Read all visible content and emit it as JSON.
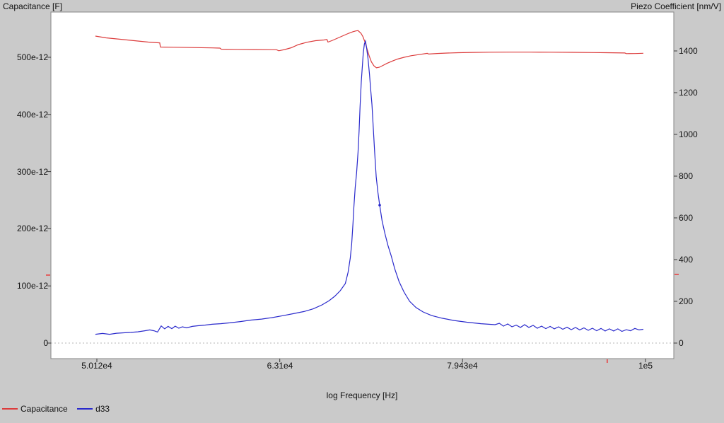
{
  "chart_data": {
    "type": "line",
    "title": "",
    "x_axis": {
      "label": "log Frequency [Hz]",
      "scale": "log",
      "range_log10": [
        4.6749,
        5.0155
      ],
      "ticks": [
        {
          "value": 50120,
          "label": "5.012e4"
        },
        {
          "value": 63100,
          "label": "6.31e4"
        },
        {
          "value": 79430,
          "label": "7.943e4"
        },
        {
          "value": 100000,
          "label": "1e5"
        }
      ]
    },
    "y_left": {
      "label": "Capacitance [F]",
      "unit": "1e-12 F",
      "range": [
        -27.2,
        579.2
      ],
      "ticks": [
        {
          "value": 0,
          "label": "0"
        },
        {
          "value": 100,
          "label": "100e-12"
        },
        {
          "value": 200,
          "label": "200e-12"
        },
        {
          "value": 300,
          "label": "300e-12"
        },
        {
          "value": 400,
          "label": "400e-12"
        },
        {
          "value": 500,
          "label": "500e-12"
        }
      ]
    },
    "y_right": {
      "label": "Piezo Coefficient [nm/V]",
      "unit": "nm/V",
      "range": [
        -74.6,
        1586.4
      ],
      "ticks": [
        {
          "value": 0,
          "label": "0"
        },
        {
          "value": 200,
          "label": "200"
        },
        {
          "value": 400,
          "label": "400"
        },
        {
          "value": 600,
          "label": "600"
        },
        {
          "value": 800,
          "label": "800"
        },
        {
          "value": 1000,
          "label": "1000"
        },
        {
          "value": 1200,
          "label": "1200"
        },
        {
          "value": 1400,
          "label": "1400"
        }
      ]
    },
    "grid": "off",
    "zero_line": true,
    "legend_position": "bottom-left",
    "background": "#cacaca",
    "plot_background": "#ffffff",
    "cursors": {
      "color": "#e84040",
      "left_axis_value": 119,
      "right_axis_value": 329,
      "x_axis_value": 95300
    },
    "series": [
      {
        "name": "Capacitance",
        "axis": "left",
        "color": "#dc3c3c",
        "points": [
          [
            50030,
            537.1
          ],
          [
            50700,
            534.0
          ],
          [
            51620,
            531.5
          ],
          [
            52540,
            529.1
          ],
          [
            53480,
            526.6
          ],
          [
            54250,
            525.3
          ],
          [
            54300,
            517.9
          ],
          [
            55180,
            517.6
          ],
          [
            56420,
            517.1
          ],
          [
            57950,
            516.5
          ],
          [
            58520,
            516.1
          ],
          [
            58620,
            514.2
          ],
          [
            59770,
            513.9
          ],
          [
            61140,
            513.6
          ],
          [
            62850,
            513.2
          ],
          [
            63020,
            511.4
          ],
          [
            63510,
            513.6
          ],
          [
            64020,
            516.7
          ],
          [
            64600,
            522.3
          ],
          [
            65310,
            526.3
          ],
          [
            66010,
            529.1
          ],
          [
            66720,
            530.3
          ],
          [
            66960,
            531.2
          ],
          [
            67050,
            526.6
          ],
          [
            67440,
            529.7
          ],
          [
            67920,
            534.0
          ],
          [
            68410,
            538.3
          ],
          [
            68830,
            542.1
          ],
          [
            69200,
            544.8
          ],
          [
            69450,
            546.1
          ],
          [
            69640,
            546.6
          ],
          [
            69890,
            542.1
          ],
          [
            70070,
            535.9
          ],
          [
            70260,
            526.0
          ],
          [
            70450,
            513.6
          ],
          [
            70640,
            501.2
          ],
          [
            70820,
            491.9
          ],
          [
            71040,
            485.1
          ],
          [
            71270,
            481.6
          ],
          [
            71520,
            482.6
          ],
          [
            71840,
            485.7
          ],
          [
            72220,
            489.4
          ],
          [
            72670,
            493.1
          ],
          [
            73190,
            496.9
          ],
          [
            73790,
            500.0
          ],
          [
            74440,
            502.7
          ],
          [
            75180,
            504.7
          ],
          [
            75980,
            506.9
          ],
          [
            76120,
            505.7
          ],
          [
            76930,
            506.7
          ],
          [
            77900,
            507.4
          ],
          [
            79010,
            508.0
          ],
          [
            80430,
            508.5
          ],
          [
            82160,
            508.9
          ],
          [
            84230,
            509.0
          ],
          [
            86510,
            509.0
          ],
          [
            88840,
            508.9
          ],
          [
            91240,
            508.6
          ],
          [
            93700,
            508.3
          ],
          [
            95210,
            508.0
          ],
          [
            97440,
            507.6
          ],
          [
            97620,
            506.4
          ],
          [
            98670,
            506.6
          ],
          [
            99730,
            507.0
          ]
        ]
      },
      {
        "name": "d33",
        "axis": "right",
        "color": "#2a2acc",
        "dot_point": [
          71560,
          661
        ],
        "points": [
          [
            50030,
            42
          ],
          [
            50480,
            46
          ],
          [
            50930,
            42
          ],
          [
            51380,
            47
          ],
          [
            51840,
            49
          ],
          [
            52310,
            51
          ],
          [
            52770,
            54
          ],
          [
            53240,
            59
          ],
          [
            53580,
            63
          ],
          [
            53860,
            59
          ],
          [
            54100,
            53
          ],
          [
            54350,
            82
          ],
          [
            54590,
            68
          ],
          [
            54830,
            80
          ],
          [
            55080,
            69
          ],
          [
            55320,
            81
          ],
          [
            55570,
            71
          ],
          [
            55820,
            78
          ],
          [
            56120,
            73
          ],
          [
            56520,
            80
          ],
          [
            56920,
            83
          ],
          [
            57430,
            86
          ],
          [
            57950,
            90
          ],
          [
            58570,
            93
          ],
          [
            59250,
            97
          ],
          [
            60050,
            103
          ],
          [
            60850,
            110
          ],
          [
            61670,
            115
          ],
          [
            62500,
            122
          ],
          [
            63340,
            131
          ],
          [
            64200,
            141
          ],
          [
            65060,
            151
          ],
          [
            65820,
            164
          ],
          [
            66550,
            183
          ],
          [
            67140,
            203
          ],
          [
            67620,
            224
          ],
          [
            68100,
            251
          ],
          [
            68530,
            285
          ],
          [
            68770,
            339
          ],
          [
            68960,
            407
          ],
          [
            69080,
            475
          ],
          [
            69200,
            576
          ],
          [
            69270,
            651
          ],
          [
            69390,
            746
          ],
          [
            69510,
            814
          ],
          [
            69640,
            915
          ],
          [
            69730,
            1017
          ],
          [
            69820,
            1136
          ],
          [
            69920,
            1254
          ],
          [
            70010,
            1322
          ],
          [
            70100,
            1390
          ],
          [
            70200,
            1434
          ],
          [
            70290,
            1447
          ],
          [
            70380,
            1420
          ],
          [
            70510,
            1366
          ],
          [
            70650,
            1288
          ],
          [
            70760,
            1210
          ],
          [
            70870,
            1142
          ],
          [
            70980,
            1034
          ],
          [
            71110,
            915
          ],
          [
            71250,
            797
          ],
          [
            71400,
            722
          ],
          [
            71560,
            661
          ],
          [
            71780,
            586
          ],
          [
            72030,
            525
          ],
          [
            72310,
            468
          ],
          [
            72610,
            417
          ],
          [
            72930,
            356
          ],
          [
            73330,
            295
          ],
          [
            73790,
            244
          ],
          [
            74310,
            200
          ],
          [
            74910,
            170
          ],
          [
            75580,
            149
          ],
          [
            76390,
            132
          ],
          [
            77420,
            119
          ],
          [
            78590,
            108
          ],
          [
            79860,
            100
          ],
          [
            81290,
            93
          ],
          [
            82750,
            88
          ],
          [
            83190,
            95
          ],
          [
            83630,
            81
          ],
          [
            84080,
            92
          ],
          [
            84530,
            78
          ],
          [
            84980,
            86
          ],
          [
            85440,
            75
          ],
          [
            85890,
            88
          ],
          [
            86350,
            75
          ],
          [
            86810,
            85
          ],
          [
            87270,
            71
          ],
          [
            87740,
            81
          ],
          [
            88210,
            69
          ],
          [
            88690,
            80
          ],
          [
            89160,
            68
          ],
          [
            89640,
            78
          ],
          [
            90120,
            66
          ],
          [
            90600,
            76
          ],
          [
            91080,
            64
          ],
          [
            91570,
            75
          ],
          [
            92050,
            63
          ],
          [
            92550,
            73
          ],
          [
            93050,
            61
          ],
          [
            93540,
            71
          ],
          [
            94040,
            59
          ],
          [
            94550,
            70
          ],
          [
            95050,
            58
          ],
          [
            95560,
            68
          ],
          [
            96070,
            58
          ],
          [
            96580,
            68
          ],
          [
            97080,
            56
          ],
          [
            97620,
            64
          ],
          [
            98140,
            59
          ],
          [
            98670,
            70
          ],
          [
            99200,
            63
          ],
          [
            99730,
            66
          ]
        ]
      }
    ]
  },
  "legend": {
    "items": [
      {
        "label": "Capacitance",
        "color": "#dc3c3c"
      },
      {
        "label": "d33",
        "color": "#2a2acc"
      }
    ]
  }
}
